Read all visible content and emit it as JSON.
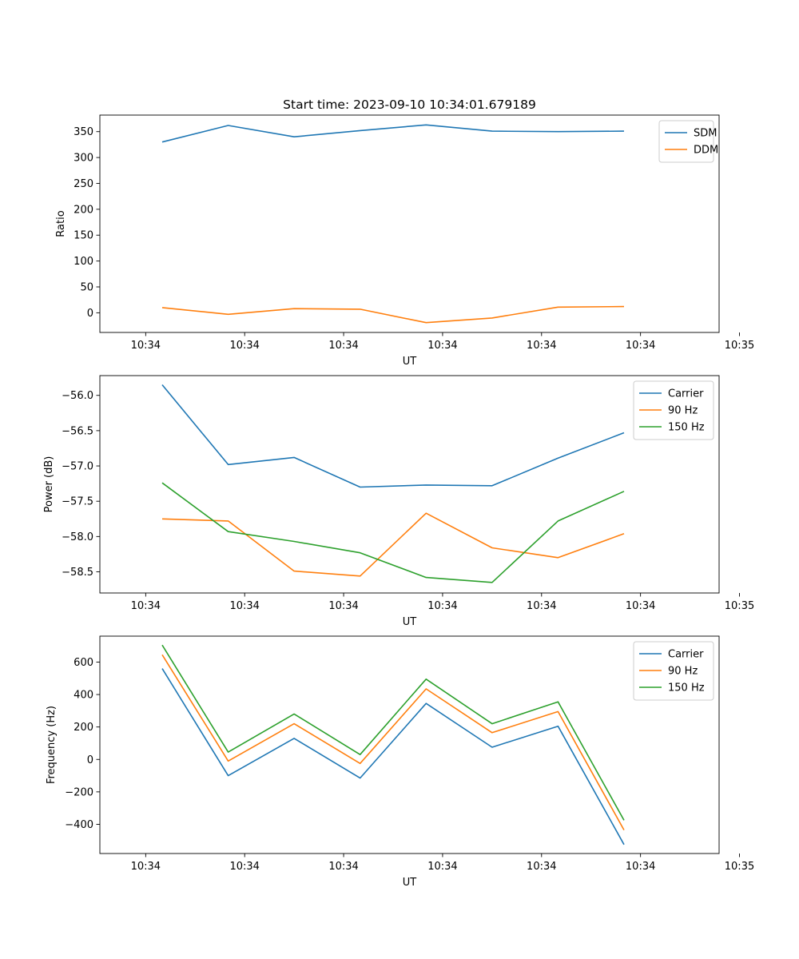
{
  "colors": {
    "blue": "#1f77b4",
    "orange": "#ff7f0e",
    "green": "#2ca02c"
  },
  "chart_data": [
    {
      "type": "line",
      "title": "Start time: 2023-09-10 10:34:01.679189",
      "xlabel": "UT",
      "ylabel": "Ratio",
      "x_index": [
        0,
        1,
        2,
        3,
        4,
        5,
        6,
        7
      ],
      "xlim": [
        -0.5,
        8.6
      ],
      "x_ticks": [
        -0.25,
        1.25,
        2.75,
        4.25,
        5.75,
        7.25,
        8.75
      ],
      "x_tick_labels": [
        "10:34",
        "10:34",
        "10:34",
        "10:34",
        "10:34",
        "10:34",
        "10:34"
      ],
      "x_tick_label_extra": "10:35",
      "ylim": [
        -38,
        382
      ],
      "y_ticks": [
        0,
        50,
        100,
        150,
        200,
        250,
        300,
        350
      ],
      "legend": "top-right",
      "series": [
        {
          "name": "SDM",
          "color": "#1f77b4",
          "values": [
            330,
            362,
            340,
            352,
            363,
            351,
            350,
            351
          ]
        },
        {
          "name": "DDM",
          "color": "#ff7f0e",
          "values": [
            10,
            -3,
            8,
            7,
            -19,
            -10,
            11,
            12
          ]
        }
      ]
    },
    {
      "type": "line",
      "title": "",
      "xlabel": "UT",
      "ylabel": "Power (dB)",
      "x_index": [
        0,
        1,
        2,
        3,
        4,
        5,
        6,
        7
      ],
      "xlim": [
        -0.5,
        8.6
      ],
      "x_ticks": [
        -0.25,
        1.25,
        2.75,
        4.25,
        5.75,
        7.25,
        8.75
      ],
      "x_tick_labels": [
        "10:34",
        "10:34",
        "10:34",
        "10:34",
        "10:34",
        "10:34",
        "10:34"
      ],
      "x_tick_label_extra": "10:35",
      "ylim": [
        -58.8,
        -55.72
      ],
      "y_ticks": [
        -58.5,
        -58.0,
        -57.5,
        -57.0,
        -56.5,
        -56.0
      ],
      "y_tick_labels": [
        "−58.5",
        "−58.0",
        "−57.5",
        "−57.0",
        "−56.5",
        "−56.0"
      ],
      "legend": "top-right",
      "series": [
        {
          "name": "Carrier",
          "color": "#1f77b4",
          "values": [
            -55.85,
            -56.98,
            -56.88,
            -57.3,
            -57.27,
            -57.28,
            -56.89,
            -56.53
          ]
        },
        {
          "name": "90 Hz",
          "color": "#ff7f0e",
          "values": [
            -57.75,
            -57.78,
            -58.49,
            -58.56,
            -57.67,
            -58.16,
            -58.3,
            -57.96
          ]
        },
        {
          "name": "150 Hz",
          "color": "#2ca02c",
          "values": [
            -57.24,
            -57.93,
            -58.07,
            -58.23,
            -58.58,
            -58.65,
            -57.78,
            -57.36
          ]
        }
      ]
    },
    {
      "type": "line",
      "title": "",
      "xlabel": "UT",
      "ylabel": "Frequency (Hz)",
      "x_index": [
        0,
        1,
        2,
        3,
        4,
        5,
        6,
        7
      ],
      "xlim": [
        -0.5,
        8.6
      ],
      "x_ticks": [
        -0.25,
        1.25,
        2.75,
        4.25,
        5.75,
        7.25,
        8.75
      ],
      "x_tick_labels": [
        "10:34",
        "10:34",
        "10:34",
        "10:34",
        "10:34",
        "10:34",
        "10:34"
      ],
      "x_tick_label_extra": "10:35",
      "ylim": [
        -580,
        760
      ],
      "y_ticks": [
        -400,
        -200,
        0,
        200,
        400,
        600
      ],
      "y_tick_labels": [
        "−400",
        "−200",
        "0",
        "200",
        "400",
        "600"
      ],
      "legend": "top-right",
      "series": [
        {
          "name": "Carrier",
          "color": "#1f77b4",
          "values": [
            560,
            -100,
            130,
            -115,
            345,
            75,
            205,
            -525
          ]
        },
        {
          "name": "90 Hz",
          "color": "#ff7f0e",
          "values": [
            645,
            -10,
            220,
            -25,
            435,
            165,
            295,
            -435
          ]
        },
        {
          "name": "150 Hz",
          "color": "#2ca02c",
          "values": [
            705,
            45,
            280,
            30,
            495,
            220,
            355,
            -375
          ]
        }
      ]
    }
  ]
}
